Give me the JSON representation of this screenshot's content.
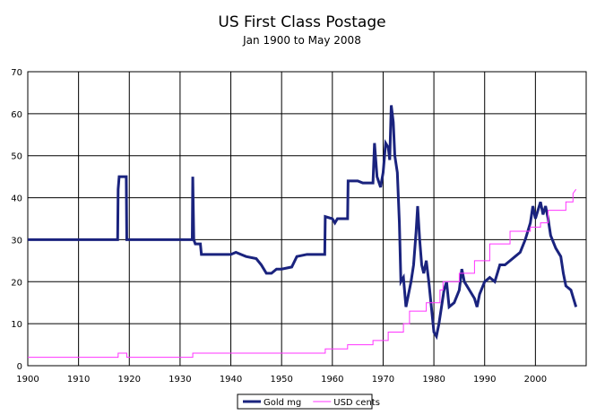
{
  "chart_data": {
    "type": "line",
    "title": "US First Class Postage",
    "subtitle": "Jan 1900 to May 2008",
    "xlim": [
      1900,
      2010
    ],
    "xticks": [
      1900,
      1910,
      1920,
      1930,
      1940,
      1950,
      1960,
      1970,
      1980,
      1990,
      2000
    ],
    "ylim": [
      0,
      70
    ],
    "yticks": [
      0,
      10,
      20,
      30,
      40,
      50,
      60,
      70
    ],
    "grid": true,
    "legend": "bottom",
    "series": [
      {
        "name": "Gold mg",
        "color": "#1a237e",
        "x": [
          1900,
          1917.7,
          1917.8,
          1918,
          1919.4,
          1919.5,
          1932.4,
          1932.5,
          1932.7,
          1933,
          1934,
          1934.2,
          1940,
          1941,
          1942,
          1943,
          1945,
          1946,
          1947,
          1948,
          1949,
          1950,
          1952,
          1953,
          1955,
          1958.5,
          1958.6,
          1960,
          1960.5,
          1961,
          1963,
          1963.1,
          1965,
          1966,
          1968,
          1968.3,
          1968.8,
          1969.5,
          1970,
          1970.5,
          1971,
          1971.3,
          1971.6,
          1972,
          1972.3,
          1972.8,
          1973.2,
          1973.5,
          1974,
          1974.5,
          1975,
          1975.5,
          1976,
          1976.5,
          1976.8,
          1977.2,
          1977.6,
          1978,
          1978.5,
          1979,
          1979.5,
          1980,
          1980.5,
          1981,
          1981.5,
          1982,
          1982.5,
          1983,
          1984,
          1985,
          1985.5,
          1986,
          1987,
          1988,
          1988.5,
          1989,
          1990,
          1991,
          1992,
          1993,
          1994,
          1995,
          1996,
          1997,
          1998,
          1999,
          1999.5,
          2000,
          2000.5,
          2001,
          2001.5,
          2002,
          2002.5,
          2003,
          2004,
          2005,
          2005.5,
          2006,
          2007,
          2007.5,
          2008
        ],
        "values": [
          30,
          30,
          42,
          45,
          45,
          30,
          30,
          45,
          30,
          29,
          29,
          26.5,
          26.5,
          27,
          26.5,
          26,
          25.5,
          24,
          22,
          22,
          23,
          23,
          23.5,
          26,
          26.5,
          26.5,
          35.5,
          35,
          34,
          35,
          35,
          44,
          44,
          43.5,
          43.5,
          53,
          45,
          42.5,
          46,
          53,
          52,
          49,
          62,
          58,
          50,
          46,
          34,
          20,
          21,
          14,
          17,
          20,
          24,
          32,
          38,
          30,
          24,
          22,
          25,
          20,
          14,
          8,
          7,
          10,
          14,
          18,
          20,
          14,
          15,
          18,
          23,
          20,
          18,
          16,
          14,
          17,
          20,
          21,
          20,
          24,
          24,
          25,
          26,
          27,
          30,
          34,
          38,
          35,
          37,
          39,
          36,
          38,
          35,
          31,
          28,
          26,
          22,
          19,
          18,
          16,
          14
        ]
      },
      {
        "name": "USD cents",
        "color": "#ff33ff",
        "x": [
          1900,
          1917.8,
          1917.8,
          1919.5,
          1919.5,
          1932.5,
          1932.5,
          1958.6,
          1958.6,
          1963,
          1963,
          1968,
          1968,
          1971,
          1971,
          1974,
          1974,
          1975.2,
          1975.2,
          1978.5,
          1978.5,
          1981.2,
          1981.2,
          1981.8,
          1981.8,
          1985,
          1985,
          1988,
          1988,
          1991,
          1991,
          1995,
          1995,
          1999,
          1999,
          2001,
          2001,
          2002.5,
          2002.5,
          2006,
          2006,
          2007.4,
          2007.4,
          2008
        ],
        "values": [
          2,
          2,
          3,
          3,
          2,
          2,
          3,
          3,
          4,
          4,
          5,
          5,
          6,
          6,
          8,
          8,
          10,
          10,
          13,
          13,
          15,
          15,
          18,
          18,
          20,
          20,
          22,
          22,
          25,
          25,
          29,
          29,
          32,
          32,
          33,
          33,
          34,
          34,
          37,
          37,
          39,
          39,
          41,
          42
        ]
      }
    ]
  }
}
